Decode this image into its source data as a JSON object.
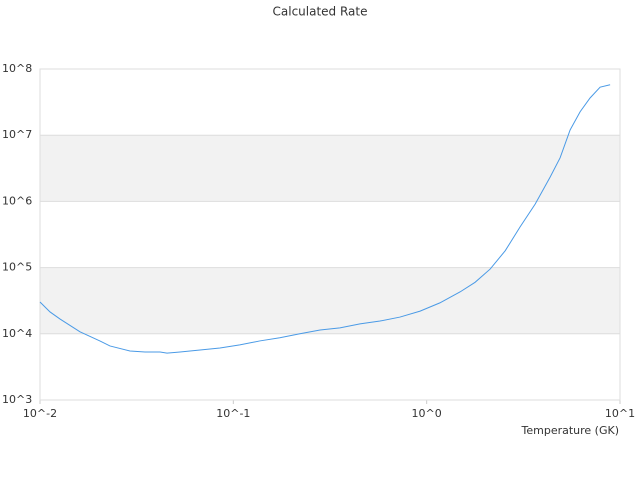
{
  "chart_data": {
    "type": "line",
    "title": "Calculated Rate",
    "x_label": "Temperature (GK)",
    "x": [
      0.01,
      0.01127,
      0.0127,
      0.0161,
      0.0204,
      0.023,
      0.0292,
      0.0349,
      0.0418,
      0.0454,
      0.053,
      0.0673,
      0.0853,
      0.108,
      0.137,
      0.174,
      0.221,
      0.281,
      0.356,
      0.452,
      0.574,
      0.728,
      0.925,
      1.17,
      1.49,
      1.78,
      2.13,
      2.55,
      3.04,
      3.64,
      4.35,
      4.9,
      5.52,
      6.22,
      7.0,
      7.89,
      8.89
    ],
    "values": [
      30200,
      21400,
      16700,
      10700,
      7800,
      6550,
      5500,
      5300,
      5300,
      5100,
      5300,
      5700,
      6100,
      6800,
      7800,
      8700,
      10000,
      11400,
      12300,
      14100,
      15600,
      17900,
      22000,
      29300,
      43000,
      60000,
      95000,
      180000,
      410000,
      910000,
      2330000,
      4550000,
      12000000,
      22600000,
      36500000,
      53200000,
      57800000
    ],
    "color": "#4a9ae6",
    "xscale": "log",
    "yscale": "log",
    "xlim": [
      0.01,
      10
    ],
    "ylim": [
      1000,
      100000000
    ],
    "xticks": [
      {
        "value": 0.01,
        "label": "10^-2"
      },
      {
        "value": 0.1,
        "label": "10^-1"
      },
      {
        "value": 1,
        "label": "10^0"
      },
      {
        "value": 10,
        "label": "10^1"
      }
    ],
    "yticks": [
      {
        "value": 1000,
        "label": "10^3"
      },
      {
        "value": 10000,
        "label": "10^4"
      },
      {
        "value": 100000,
        "label": "10^5"
      },
      {
        "value": 1000000,
        "label": "10^6"
      },
      {
        "value": 10000000,
        "label": "10^7"
      },
      {
        "value": 100000000,
        "label": "10^8"
      }
    ],
    "grid": "bands"
  }
}
